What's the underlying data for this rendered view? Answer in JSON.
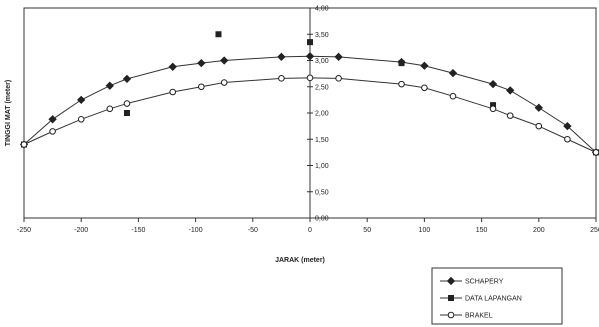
{
  "chart_data": {
    "type": "line",
    "title": "",
    "xlabel": "JARAK (meter)",
    "ylabel": "TINGGI MAT (meter)",
    "xlim": [
      -250,
      250
    ],
    "ylim": [
      0,
      4
    ],
    "x_ticks": [
      "-250",
      "-200",
      "-150",
      "-100",
      "-50",
      "0",
      "50",
      "100",
      "150",
      "200",
      "250"
    ],
    "y_ticks": [
      "0,00",
      "0,50",
      "1,00",
      "1,50",
      "2,00",
      "2,50",
      "3,00",
      "3,50",
      "4,00"
    ],
    "grid": false,
    "legend_position": "bottom-right",
    "series": [
      {
        "name": "SCHAPERY",
        "marker": "diamond",
        "x": [
          -250,
          -225,
          -200,
          -175,
          -160,
          -120,
          -95,
          -75,
          -25,
          0,
          25,
          80,
          100,
          125,
          160,
          175,
          200,
          225,
          250
        ],
        "y": [
          1.4,
          1.88,
          2.25,
          2.52,
          2.65,
          2.88,
          2.95,
          3.0,
          3.07,
          3.08,
          3.07,
          2.97,
          2.9,
          2.76,
          2.55,
          2.43,
          2.1,
          1.75,
          1.25
        ]
      },
      {
        "name": "DATA LAPANGAN",
        "marker": "square",
        "x": [
          -250,
          -160,
          -80,
          0,
          80,
          160,
          250
        ],
        "y": [
          1.4,
          2.0,
          3.5,
          3.35,
          2.95,
          2.15,
          1.25
        ]
      },
      {
        "name": "BRAKEL",
        "marker": "circle",
        "x": [
          -250,
          -225,
          -200,
          -175,
          -160,
          -120,
          -95,
          -75,
          -25,
          0,
          25,
          80,
          100,
          125,
          160,
          175,
          200,
          225,
          250
        ],
        "y": [
          1.4,
          1.65,
          1.88,
          2.08,
          2.18,
          2.4,
          2.5,
          2.58,
          2.66,
          2.67,
          2.66,
          2.55,
          2.48,
          2.32,
          2.08,
          1.95,
          1.75,
          1.5,
          1.25
        ]
      }
    ]
  }
}
